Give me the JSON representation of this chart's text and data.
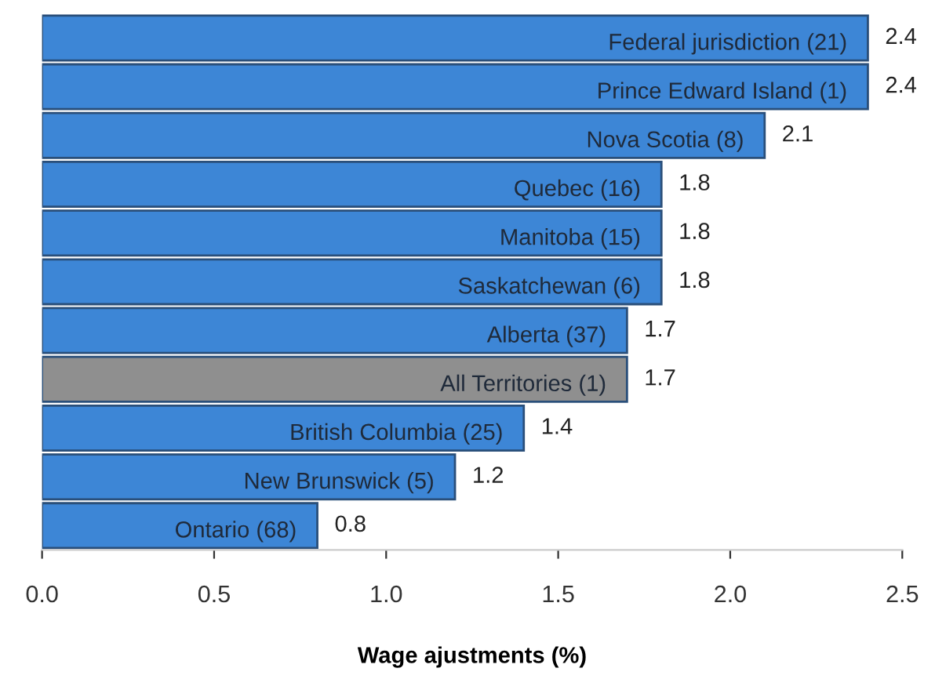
{
  "chart_data": {
    "type": "bar",
    "orientation": "horizontal",
    "xlabel": "Wage ajustments (%)",
    "categories": [
      "Federal jurisdiction (21)",
      "Prince Edward Island (1)",
      "Nova Scotia (8)",
      "Quebec (16)",
      "Manitoba (15)",
      "Saskatchewan (6)",
      "Alberta (37)",
      "All Territories (1)",
      "British Columbia (25)",
      "New Brunswick (5)",
      "Ontario (68)"
    ],
    "values": [
      2.4,
      2.4,
      2.1,
      1.8,
      1.8,
      1.8,
      1.7,
      1.7,
      1.4,
      1.2,
      0.8
    ],
    "colors": [
      "#3d86d6",
      "#3d86d6",
      "#3d86d6",
      "#3d86d6",
      "#3d86d6",
      "#3d86d6",
      "#3d86d6",
      "#8f8f8f",
      "#3d86d6",
      "#3d86d6",
      "#3d86d6"
    ],
    "xlim": [
      0,
      2.5
    ],
    "xticks": [
      {
        "value": 0,
        "label": "0.0"
      },
      0.5,
      {
        "value": 1,
        "label": "1.0"
      },
      1.5,
      {
        "value": 2,
        "label": "2.0"
      },
      2.5
    ],
    "data_labels": true,
    "grid": false,
    "legend": false
  }
}
